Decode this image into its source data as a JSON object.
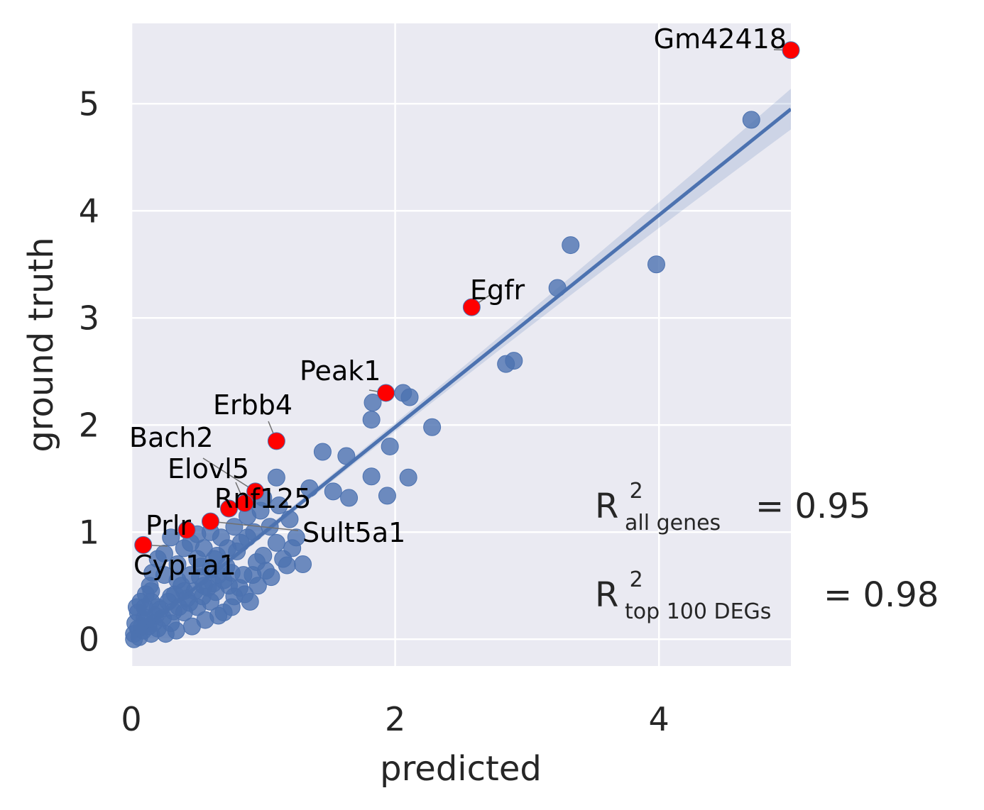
{
  "chart_data": {
    "type": "scatter",
    "xlabel": "predicted",
    "ylabel": "ground truth",
    "xlim": [
      0,
      5
    ],
    "ylim": [
      -0.25,
      5.75
    ],
    "x_ticks": [
      "0",
      "2",
      "4"
    ],
    "x_tick_values": [
      0,
      2,
      4
    ],
    "y_ticks": [
      "0",
      "1",
      "2",
      "3",
      "4",
      "5"
    ],
    "y_tick_values": [
      0,
      1,
      2,
      3,
      4,
      5
    ],
    "grid": true,
    "background_color": "#eaeaf2",
    "point_color": "#4c72b0",
    "highlight_color": "#ff0000",
    "regression": {
      "slope": 0.99,
      "intercept": 0.0,
      "ci_halfwidth_at_end": 0.16,
      "line_color": "#4c72b0"
    },
    "series": [
      {
        "points": [
          [
            4.7,
            4.85
          ],
          [
            3.98,
            3.5
          ],
          [
            3.33,
            3.68
          ],
          [
            3.23,
            3.28
          ],
          [
            2.9,
            2.6
          ],
          [
            2.84,
            2.57
          ],
          [
            2.28,
            1.98
          ],
          [
            2.11,
            2.26
          ],
          [
            2.06,
            2.3
          ],
          [
            1.83,
            2.21
          ],
          [
            1.82,
            2.05
          ],
          [
            1.96,
            1.8
          ],
          [
            1.45,
            1.75
          ],
          [
            1.63,
            1.71
          ],
          [
            1.82,
            1.52
          ],
          [
            2.1,
            1.51
          ],
          [
            1.94,
            1.34
          ],
          [
            1.65,
            1.32
          ],
          [
            1.53,
            1.38
          ],
          [
            1.35,
            1.41
          ],
          [
            1.1,
            1.51
          ],
          [
            1.0,
            1.32
          ],
          [
            1.2,
            1.12
          ],
          [
            1.05,
            1.05
          ],
          [
            1.25,
            0.95
          ],
          [
            1.1,
            0.9
          ],
          [
            1.3,
            0.7
          ],
          [
            1.18,
            0.69
          ],
          [
            1.0,
            0.78
          ],
          [
            0.95,
            0.72
          ],
          [
            0.88,
            0.95
          ],
          [
            0.8,
            0.82
          ],
          [
            0.9,
            0.35
          ],
          [
            0.82,
            0.48
          ],
          [
            0.7,
            0.55
          ],
          [
            0.6,
            0.65
          ],
          [
            0.55,
            0.5
          ],
          [
            0.5,
            0.75
          ],
          [
            0.45,
            0.6
          ],
          [
            0.4,
            0.45
          ],
          [
            0.35,
            0.55
          ],
          [
            0.3,
            0.4
          ],
          [
            0.25,
            0.8
          ],
          [
            0.2,
            0.3
          ],
          [
            0.15,
            0.35
          ],
          [
            0.1,
            0.2
          ],
          [
            0.05,
            0.1
          ],
          [
            0.02,
            0.05
          ],
          [
            0.4,
            0.25
          ],
          [
            0.5,
            0.3
          ],
          [
            0.6,
            0.35
          ],
          [
            0.7,
            0.25
          ],
          [
            0.3,
            0.15
          ],
          [
            0.2,
            0.1
          ],
          [
            0.15,
            0.05
          ],
          [
            0.08,
            0.12
          ],
          [
            0.12,
            0.18
          ],
          [
            0.18,
            0.22
          ],
          [
            0.22,
            0.28
          ],
          [
            0.28,
            0.35
          ],
          [
            0.33,
            0.42
          ],
          [
            0.38,
            0.5
          ],
          [
            0.42,
            0.38
          ],
          [
            0.48,
            0.45
          ],
          [
            0.52,
            0.58
          ],
          [
            0.58,
            0.48
          ],
          [
            0.62,
            0.52
          ],
          [
            0.66,
            0.6
          ],
          [
            0.72,
            0.68
          ],
          [
            0.76,
            0.62
          ],
          [
            0.78,
            0.4
          ],
          [
            0.85,
            0.6
          ],
          [
            0.65,
            0.78
          ],
          [
            0.55,
            0.85
          ],
          [
            0.45,
            0.9
          ],
          [
            0.35,
            0.7
          ],
          [
            0.25,
            0.6
          ],
          [
            0.15,
            0.45
          ],
          [
            0.1,
            0.3
          ],
          [
            0.05,
            0.25
          ],
          [
            0.03,
            0.15
          ],
          [
            0.02,
            0.0
          ],
          [
            0.06,
            0.02
          ],
          [
            0.09,
            0.08
          ],
          [
            0.13,
            0.12
          ],
          [
            0.17,
            0.15
          ],
          [
            0.24,
            0.2
          ],
          [
            0.32,
            0.26
          ],
          [
            0.36,
            0.3
          ],
          [
            0.44,
            0.34
          ],
          [
            0.54,
            0.4
          ],
          [
            0.64,
            0.44
          ],
          [
            0.74,
            0.5
          ],
          [
            0.92,
            0.6
          ],
          [
            1.02,
            0.64
          ],
          [
            0.68,
            0.95
          ],
          [
            0.78,
            1.05
          ],
          [
            0.88,
            1.15
          ],
          [
            0.6,
            1.0
          ],
          [
            0.5,
            0.98
          ],
          [
            0.4,
            0.85
          ],
          [
            0.3,
            0.95
          ],
          [
            0.2,
            0.75
          ],
          [
            0.16,
            0.62
          ],
          [
            0.14,
            0.5
          ],
          [
            0.11,
            0.42
          ],
          [
            0.07,
            0.35
          ],
          [
            0.04,
            0.3
          ],
          [
            0.26,
            0.05
          ],
          [
            0.34,
            0.08
          ],
          [
            0.46,
            0.12
          ],
          [
            0.56,
            0.18
          ],
          [
            0.66,
            0.22
          ],
          [
            0.76,
            0.3
          ],
          [
            0.86,
            0.42
          ],
          [
            0.96,
            0.5
          ],
          [
            1.06,
            0.58
          ],
          [
            1.15,
            0.75
          ],
          [
            1.22,
            0.85
          ],
          [
            1.12,
            1.25
          ],
          [
            0.98,
            1.2
          ],
          [
            0.93,
            1.0
          ],
          [
            0.83,
            0.9
          ],
          [
            0.73,
            0.85
          ],
          [
            0.63,
            0.75
          ],
          [
            0.53,
            0.68
          ]
        ]
      }
    ],
    "highlighted": [
      {
        "gene": "Gm42418",
        "x": 5.0,
        "y": 5.5
      },
      {
        "gene": "Egfr",
        "x": 2.58,
        "y": 3.1
      },
      {
        "gene": "Peak1",
        "x": 1.93,
        "y": 2.3
      },
      {
        "gene": "Erbb4",
        "x": 1.1,
        "y": 1.85
      },
      {
        "gene": "Bach2",
        "x": 0.94,
        "y": 1.38
      },
      {
        "gene": "Elovl5",
        "x": 0.86,
        "y": 1.27
      },
      {
        "gene": "Rnf125",
        "x": 0.74,
        "y": 1.22
      },
      {
        "gene": "Sult5a1",
        "x": 0.6,
        "y": 1.1
      },
      {
        "gene": "Prlr",
        "x": 0.42,
        "y": 1.02
      },
      {
        "gene": "Cyp1a1",
        "x": 0.09,
        "y": 0.88
      }
    ],
    "annotations": {
      "r2_all_prefix": "R",
      "r2_all_sup": "2",
      "r2_all_sub": "all genes",
      "r2_all_value": "= 0.95",
      "r2_top_prefix": "R",
      "r2_top_sup": "2",
      "r2_top_sub": "top 100 DEGs",
      "r2_top_value": "= 0.98"
    }
  }
}
